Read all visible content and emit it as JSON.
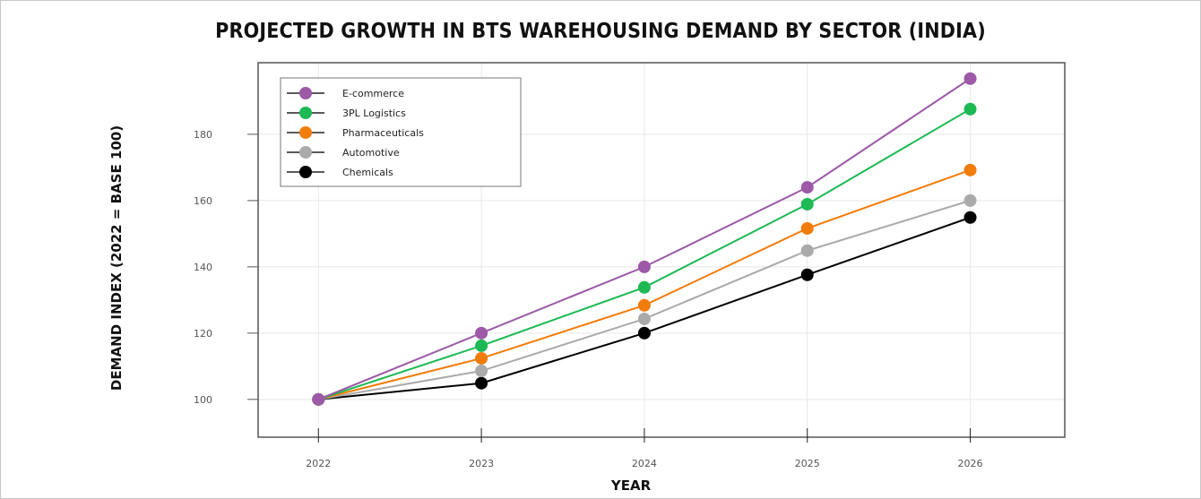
{
  "chart_data": {
    "type": "line",
    "title": "PROJECTED GROWTH IN BTS WAREHOUSING DEMAND BY SECTOR (INDIA)",
    "xlabel": "YEAR",
    "ylabel": "DEMAND INDEX (2022 = BASE 100)",
    "x": [
      2022,
      2023,
      2024,
      2025,
      2026
    ],
    "x_tick_labels": [
      "2022",
      "2023",
      "2024",
      "2025",
      "2026"
    ],
    "y_ticks": [
      100,
      120,
      140,
      160,
      180
    ],
    "y_tick_labels": [
      "100",
      "120",
      "140",
      "160",
      "180"
    ],
    "xlim": [
      2021.63,
      2026.58
    ],
    "ylim": [
      88.6,
      201.6
    ],
    "grid": true,
    "legend_position": "top-left",
    "series": [
      {
        "name": "E-commerce",
        "color": "#9b59a6",
        "values": [
          100,
          120,
          140,
          164,
          196.8
        ]
      },
      {
        "name": "3PL Logistics",
        "color": "#1db954",
        "values": [
          100,
          116.2,
          133.8,
          158.9,
          187.6
        ]
      },
      {
        "name": "Pharmaceuticals",
        "color": "#f07c0a",
        "values": [
          100,
          112.4,
          128.4,
          151.6,
          169.2
        ]
      },
      {
        "name": "Automotive",
        "color": "#aaaaaa",
        "values": [
          100,
          108.6,
          124.3,
          144.9,
          160
        ]
      },
      {
        "name": "Chemicals",
        "color": "#000000",
        "values": [
          100,
          104.9,
          120,
          137.6,
          154.9
        ]
      }
    ]
  }
}
